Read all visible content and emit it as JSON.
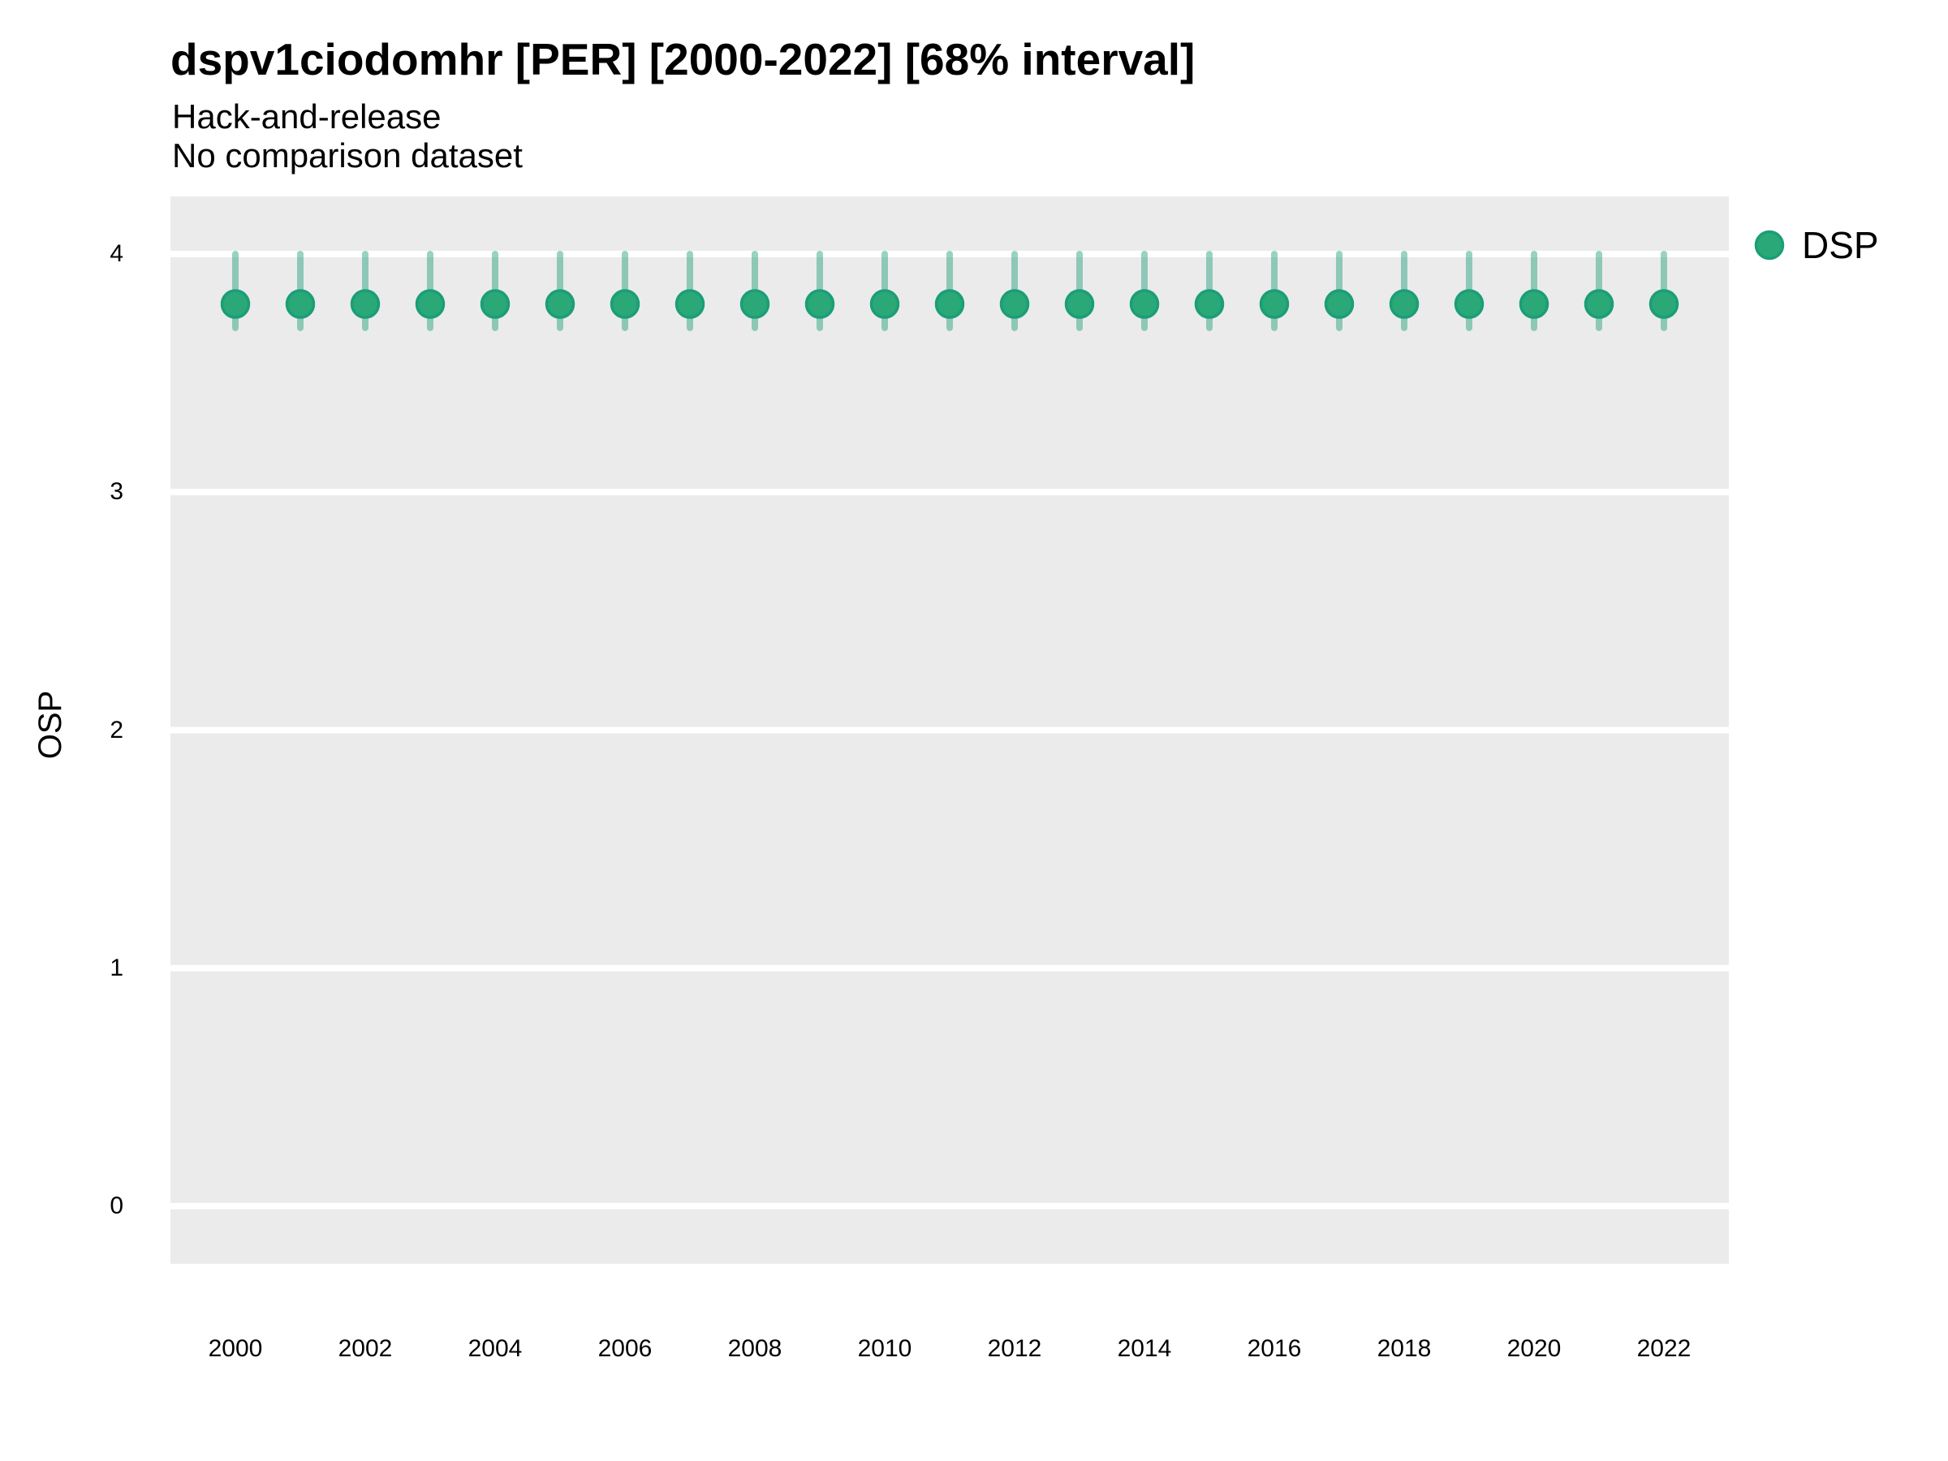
{
  "header": {
    "title": "dspv1ciodomhr [PER] [2000-2022] [68% interval]",
    "subtitle_line1": "Hack-and-release",
    "subtitle_line2": "No comparison dataset"
  },
  "colors": {
    "panel_background": "#ebebeb",
    "gridline": "#ffffff",
    "point_fill": "#2aa878",
    "point_stroke": "#1b9e77",
    "interval_bar": "rgba(27,158,119,0.45)",
    "text": "#000000"
  },
  "chart_data": {
    "type": "scatter",
    "title": "dspv1ciodomhr [PER] [2000-2022] [68% interval]",
    "subtitle_line1": "Hack-and-release",
    "subtitle_line2": "No comparison dataset",
    "xlabel": "",
    "ylabel": "OSP",
    "interval_level": "68%",
    "x": [
      2000,
      2001,
      2002,
      2003,
      2004,
      2005,
      2006,
      2007,
      2008,
      2009,
      2010,
      2011,
      2012,
      2013,
      2014,
      2015,
      2016,
      2017,
      2018,
      2019,
      2020,
      2021,
      2022
    ],
    "series": [
      {
        "name": "DSP",
        "estimates": [
          3.79,
          3.79,
          3.79,
          3.79,
          3.79,
          3.79,
          3.79,
          3.79,
          3.79,
          3.79,
          3.79,
          3.79,
          3.79,
          3.79,
          3.79,
          3.79,
          3.79,
          3.79,
          3.79,
          3.79,
          3.79,
          3.79,
          3.79
        ],
        "lower": [
          3.69,
          3.69,
          3.69,
          3.69,
          3.69,
          3.69,
          3.69,
          3.69,
          3.69,
          3.69,
          3.69,
          3.69,
          3.69,
          3.69,
          3.69,
          3.69,
          3.69,
          3.69,
          3.69,
          3.69,
          3.69,
          3.69,
          3.69
        ],
        "upper": [
          4.0,
          4.0,
          4.0,
          4.0,
          4.0,
          4.0,
          4.0,
          4.0,
          4.0,
          4.0,
          4.0,
          4.0,
          4.0,
          4.0,
          4.0,
          4.0,
          4.0,
          4.0,
          4.0,
          4.0,
          4.0,
          4.0,
          4.0
        ]
      }
    ],
    "xlim": [
      1999,
      2023
    ],
    "ylim": [
      -0.242,
      4.242
    ],
    "yticks": [
      4,
      3,
      2,
      1,
      0
    ],
    "xticks": [
      2000,
      2002,
      2004,
      2006,
      2008,
      2010,
      2012,
      2014,
      2016,
      2018,
      2020,
      2022
    ],
    "grid": "horizontal-major-only",
    "legend_position": "right-top"
  }
}
